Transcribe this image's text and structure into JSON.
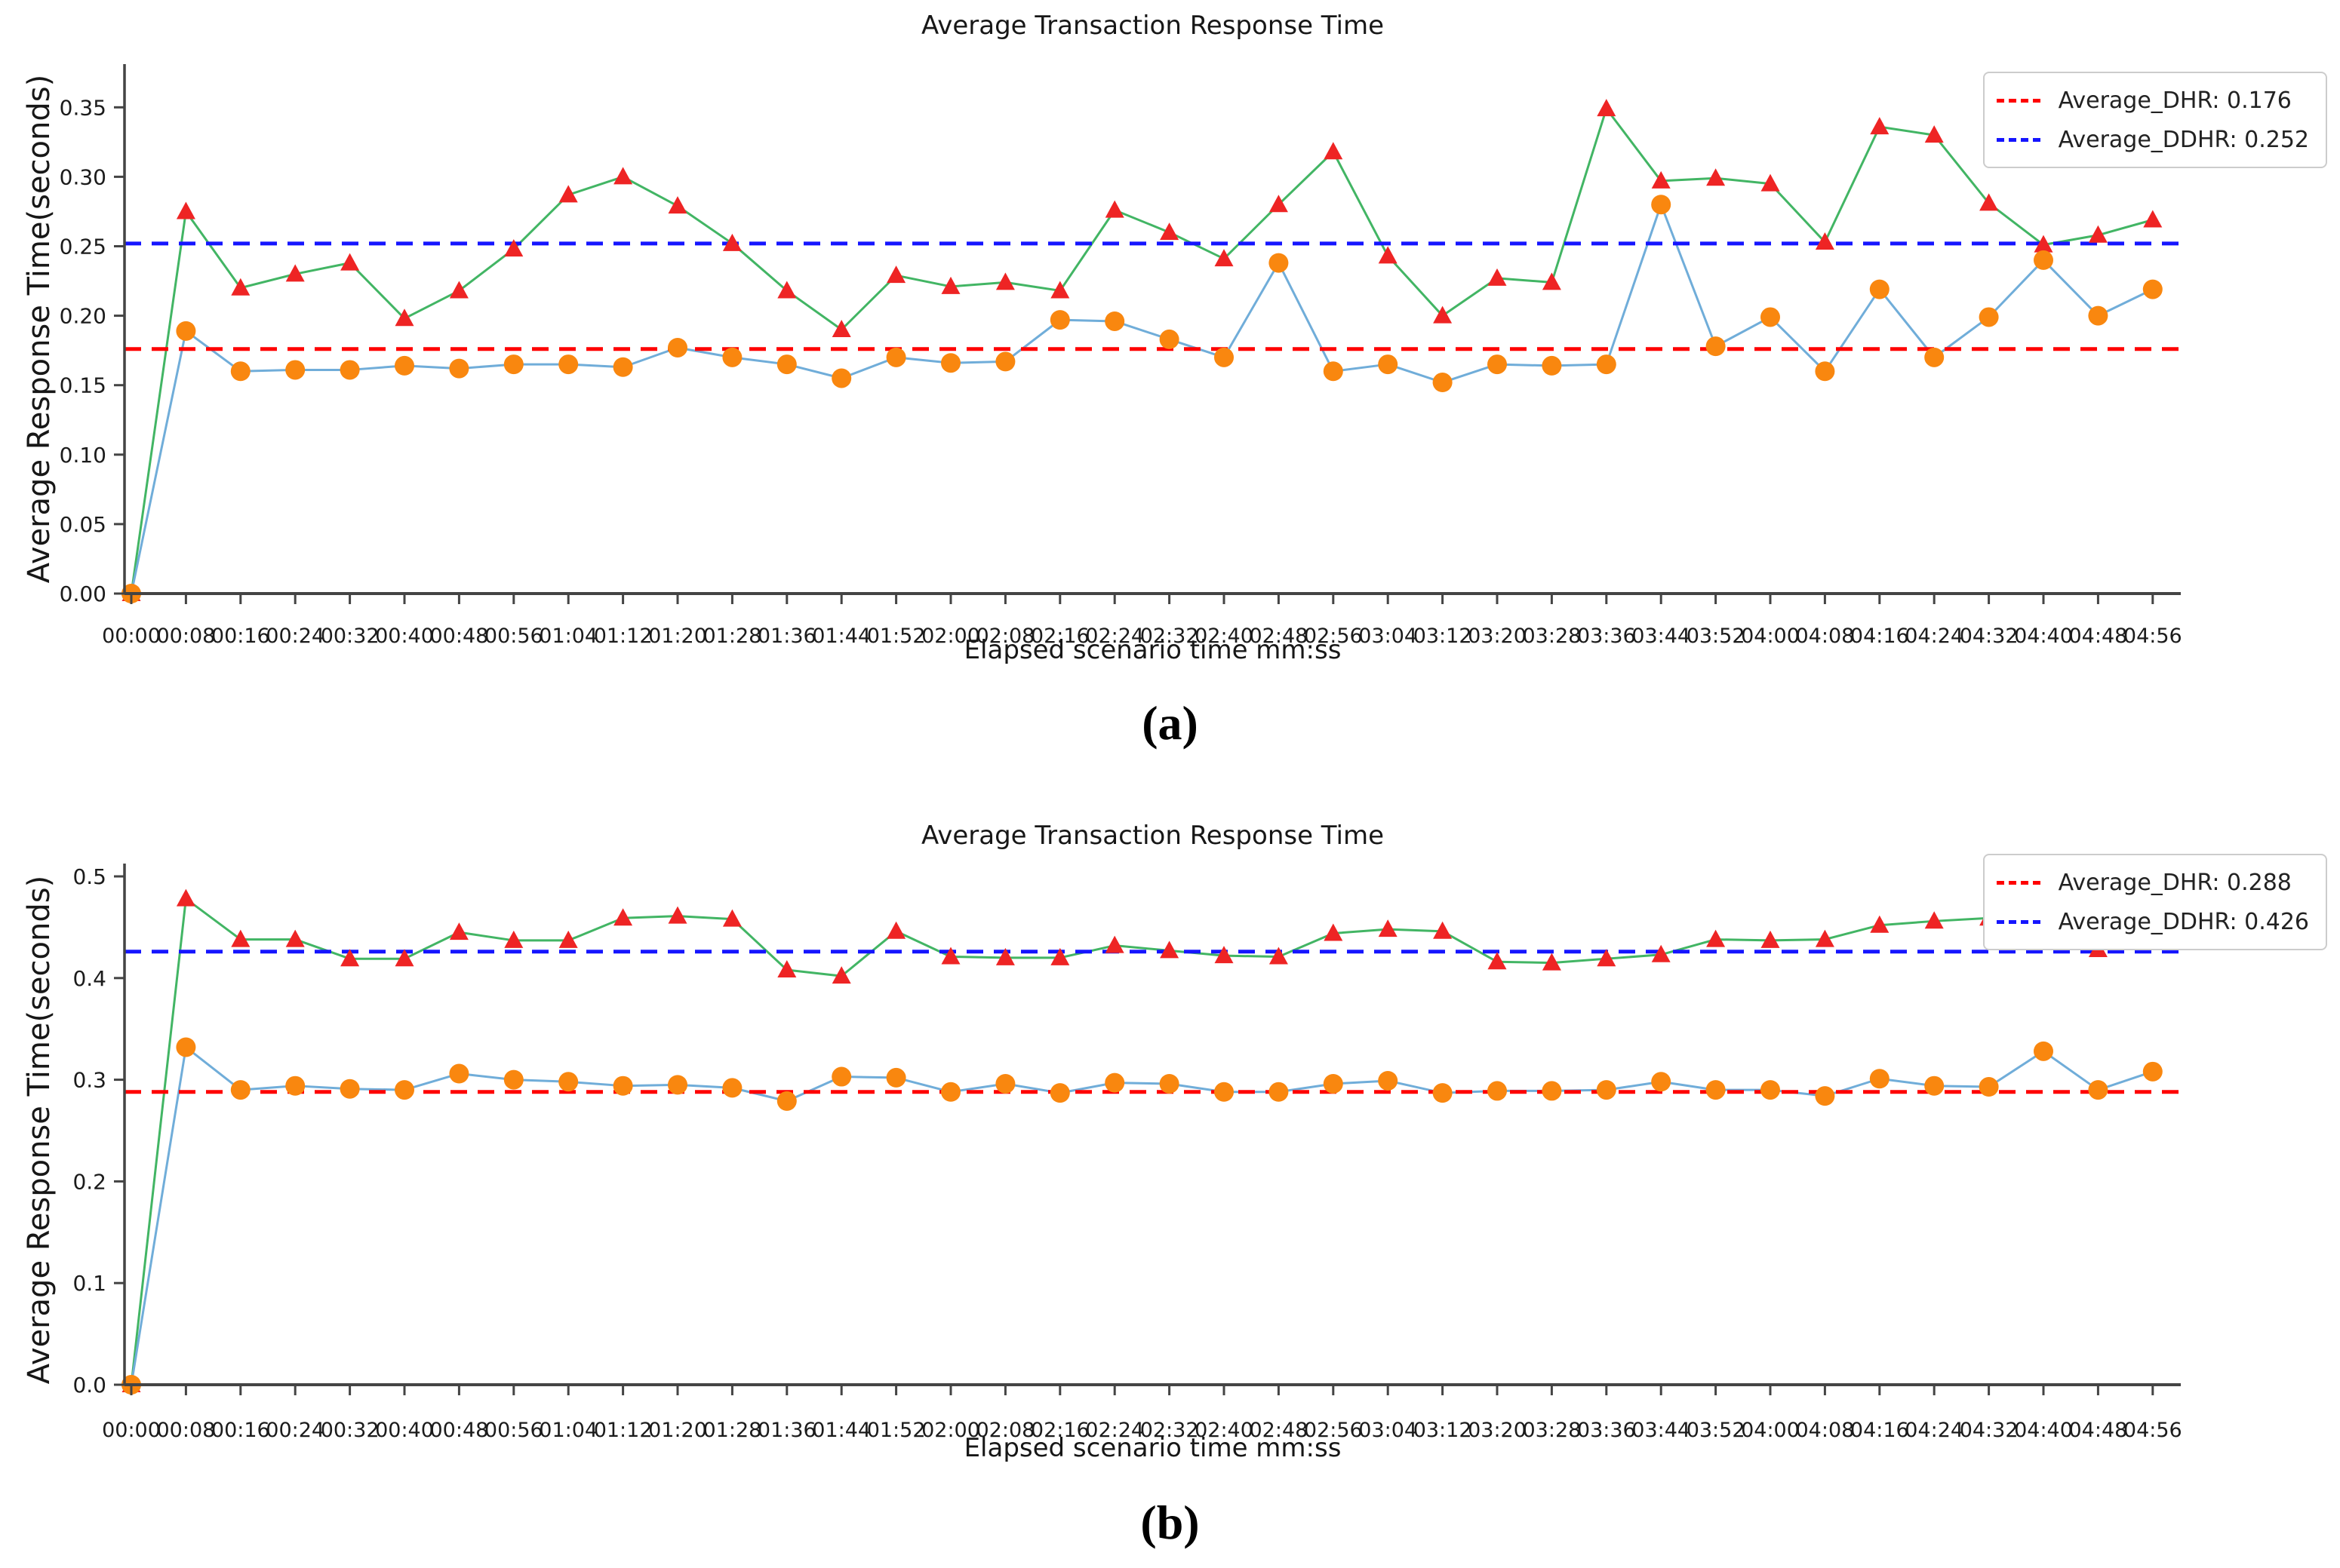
{
  "figure": {
    "caption_a": "(a)",
    "caption_b": "(b)"
  },
  "chart_data": [
    {
      "id": "a",
      "type": "line",
      "title": "Average Transaction Response Time",
      "xlabel": "Elapsed scenario time mm:ss",
      "ylabel": "Average Response Time(seconds)",
      "caption": "(a)",
      "legend_position": "top-right",
      "grid": false,
      "ylim": [
        0.0,
        0.365
      ],
      "yticks": {
        "values": [
          0.0,
          0.05,
          0.1,
          0.15,
          0.2,
          0.25,
          0.3,
          0.35
        ],
        "labels": [
          "0.00",
          "0.05",
          "0.10",
          "0.15",
          "0.20",
          "0.25",
          "0.30",
          "0.35"
        ]
      },
      "x_labels": [
        "00:00",
        "00:08",
        "00:16",
        "00:24",
        "00:32",
        "00:40",
        "00:48",
        "00:56",
        "01:04",
        "01:12",
        "01:20",
        "01:28",
        "01:36",
        "01:44",
        "01:52",
        "02:00",
        "02:08",
        "02:16",
        "02:24",
        "02:32",
        "02:40",
        "02:48",
        "02:56",
        "03:04",
        "03:12",
        "03:20",
        "03:28",
        "03:36",
        "03:44",
        "03:52",
        "04:00",
        "04:08",
        "04:16",
        "04:24",
        "04:32",
        "04:40",
        "04:48",
        "04:56"
      ],
      "reference_lines": [
        {
          "name": "Average_DHR",
          "label": "Average_DHR: 0.176",
          "value": 0.176,
          "color": "#ff0000",
          "style": "dashed"
        },
        {
          "name": "Average_DDHR",
          "label": "Average_DDHR: 0.252",
          "value": 0.252,
          "color": "#1515ff",
          "style": "dashed"
        }
      ],
      "series": [
        {
          "name": "DDHR",
          "marker": "triangle",
          "marker_color": "#ee2424",
          "line_color": "#42b564",
          "values": [
            0.0,
            0.275,
            0.22,
            0.23,
            0.238,
            0.198,
            0.218,
            0.248,
            0.287,
            0.3,
            0.279,
            0.252,
            0.218,
            0.19,
            0.229,
            0.221,
            0.224,
            0.218,
            0.276,
            0.26,
            0.241,
            0.28,
            0.318,
            0.243,
            0.2,
            0.227,
            0.224,
            0.349,
            0.297,
            0.299,
            0.295,
            0.253,
            0.336,
            0.33,
            0.281,
            0.251,
            0.258,
            0.269
          ]
        },
        {
          "name": "DHR",
          "marker": "circle",
          "marker_color": "#f9870f",
          "line_color": "#70add9",
          "values": [
            0.0,
            0.189,
            0.16,
            0.161,
            0.161,
            0.164,
            0.162,
            0.165,
            0.165,
            0.163,
            0.177,
            0.17,
            0.165,
            0.155,
            0.17,
            0.166,
            0.167,
            0.197,
            0.196,
            0.183,
            0.17,
            0.238,
            0.16,
            0.165,
            0.152,
            0.165,
            0.164,
            0.165,
            0.28,
            0.178,
            0.199,
            0.16,
            0.219,
            0.17,
            0.199,
            0.24,
            0.2,
            0.219
          ]
        }
      ]
    },
    {
      "id": "b",
      "type": "line",
      "title": "Average Transaction Response Time",
      "xlabel": "Elapsed scenario time mm:ss",
      "ylabel": "Average Response Time(seconds)",
      "caption": "(b)",
      "legend_position": "top-right",
      "grid": false,
      "ylim": [
        0.0,
        0.52
      ],
      "yticks": {
        "values": [
          0.0,
          0.1,
          0.2,
          0.3,
          0.4,
          0.5
        ],
        "labels": [
          "0.0",
          "0.1",
          "0.2",
          "0.3",
          "0.4",
          "0.5"
        ]
      },
      "x_labels": [
        "00:00",
        "00:08",
        "00:16",
        "00:24",
        "00:32",
        "00:40",
        "00:48",
        "00:56",
        "01:04",
        "01:12",
        "01:20",
        "01:28",
        "01:36",
        "01:44",
        "01:52",
        "02:00",
        "02:08",
        "02:16",
        "02:24",
        "02:32",
        "02:40",
        "02:48",
        "02:56",
        "03:04",
        "03:12",
        "03:20",
        "03:28",
        "03:36",
        "03:44",
        "03:52",
        "04:00",
        "04:08",
        "04:16",
        "04:24",
        "04:32",
        "04:40",
        "04:48",
        "04:56"
      ],
      "reference_lines": [
        {
          "name": "Average_DHR",
          "label": "Average_DHR: 0.288",
          "value": 0.288,
          "color": "#ff0000",
          "style": "dashed"
        },
        {
          "name": "Average_DDHR",
          "label": "Average_DDHR: 0.426",
          "value": 0.426,
          "color": "#1515ff",
          "style": "dashed"
        }
      ],
      "series": [
        {
          "name": "DDHR",
          "marker": "triangle",
          "marker_color": "#ee2424",
          "line_color": "#42b564",
          "values": [
            0.0,
            0.478,
            0.438,
            0.438,
            0.419,
            0.419,
            0.445,
            0.437,
            0.437,
            0.459,
            0.461,
            0.458,
            0.408,
            0.402,
            0.446,
            0.421,
            0.42,
            0.42,
            0.432,
            0.427,
            0.422,
            0.421,
            0.444,
            0.448,
            0.446,
            0.416,
            0.415,
            0.419,
            0.423,
            0.438,
            0.437,
            0.438,
            0.452,
            0.456,
            0.459,
            0.458,
            0.428,
            0.438
          ]
        },
        {
          "name": "DHR",
          "marker": "circle",
          "marker_color": "#f9870f",
          "line_color": "#70add9",
          "values": [
            0.0,
            0.332,
            0.29,
            0.294,
            0.291,
            0.29,
            0.306,
            0.3,
            0.298,
            0.294,
            0.295,
            0.292,
            0.279,
            0.303,
            0.302,
            0.288,
            0.296,
            0.287,
            0.297,
            0.296,
            0.288,
            0.288,
            0.296,
            0.299,
            0.287,
            0.289,
            0.289,
            0.29,
            0.298,
            0.29,
            0.29,
            0.284,
            0.301,
            0.294,
            0.293,
            0.328,
            0.29,
            0.308
          ]
        }
      ]
    }
  ]
}
